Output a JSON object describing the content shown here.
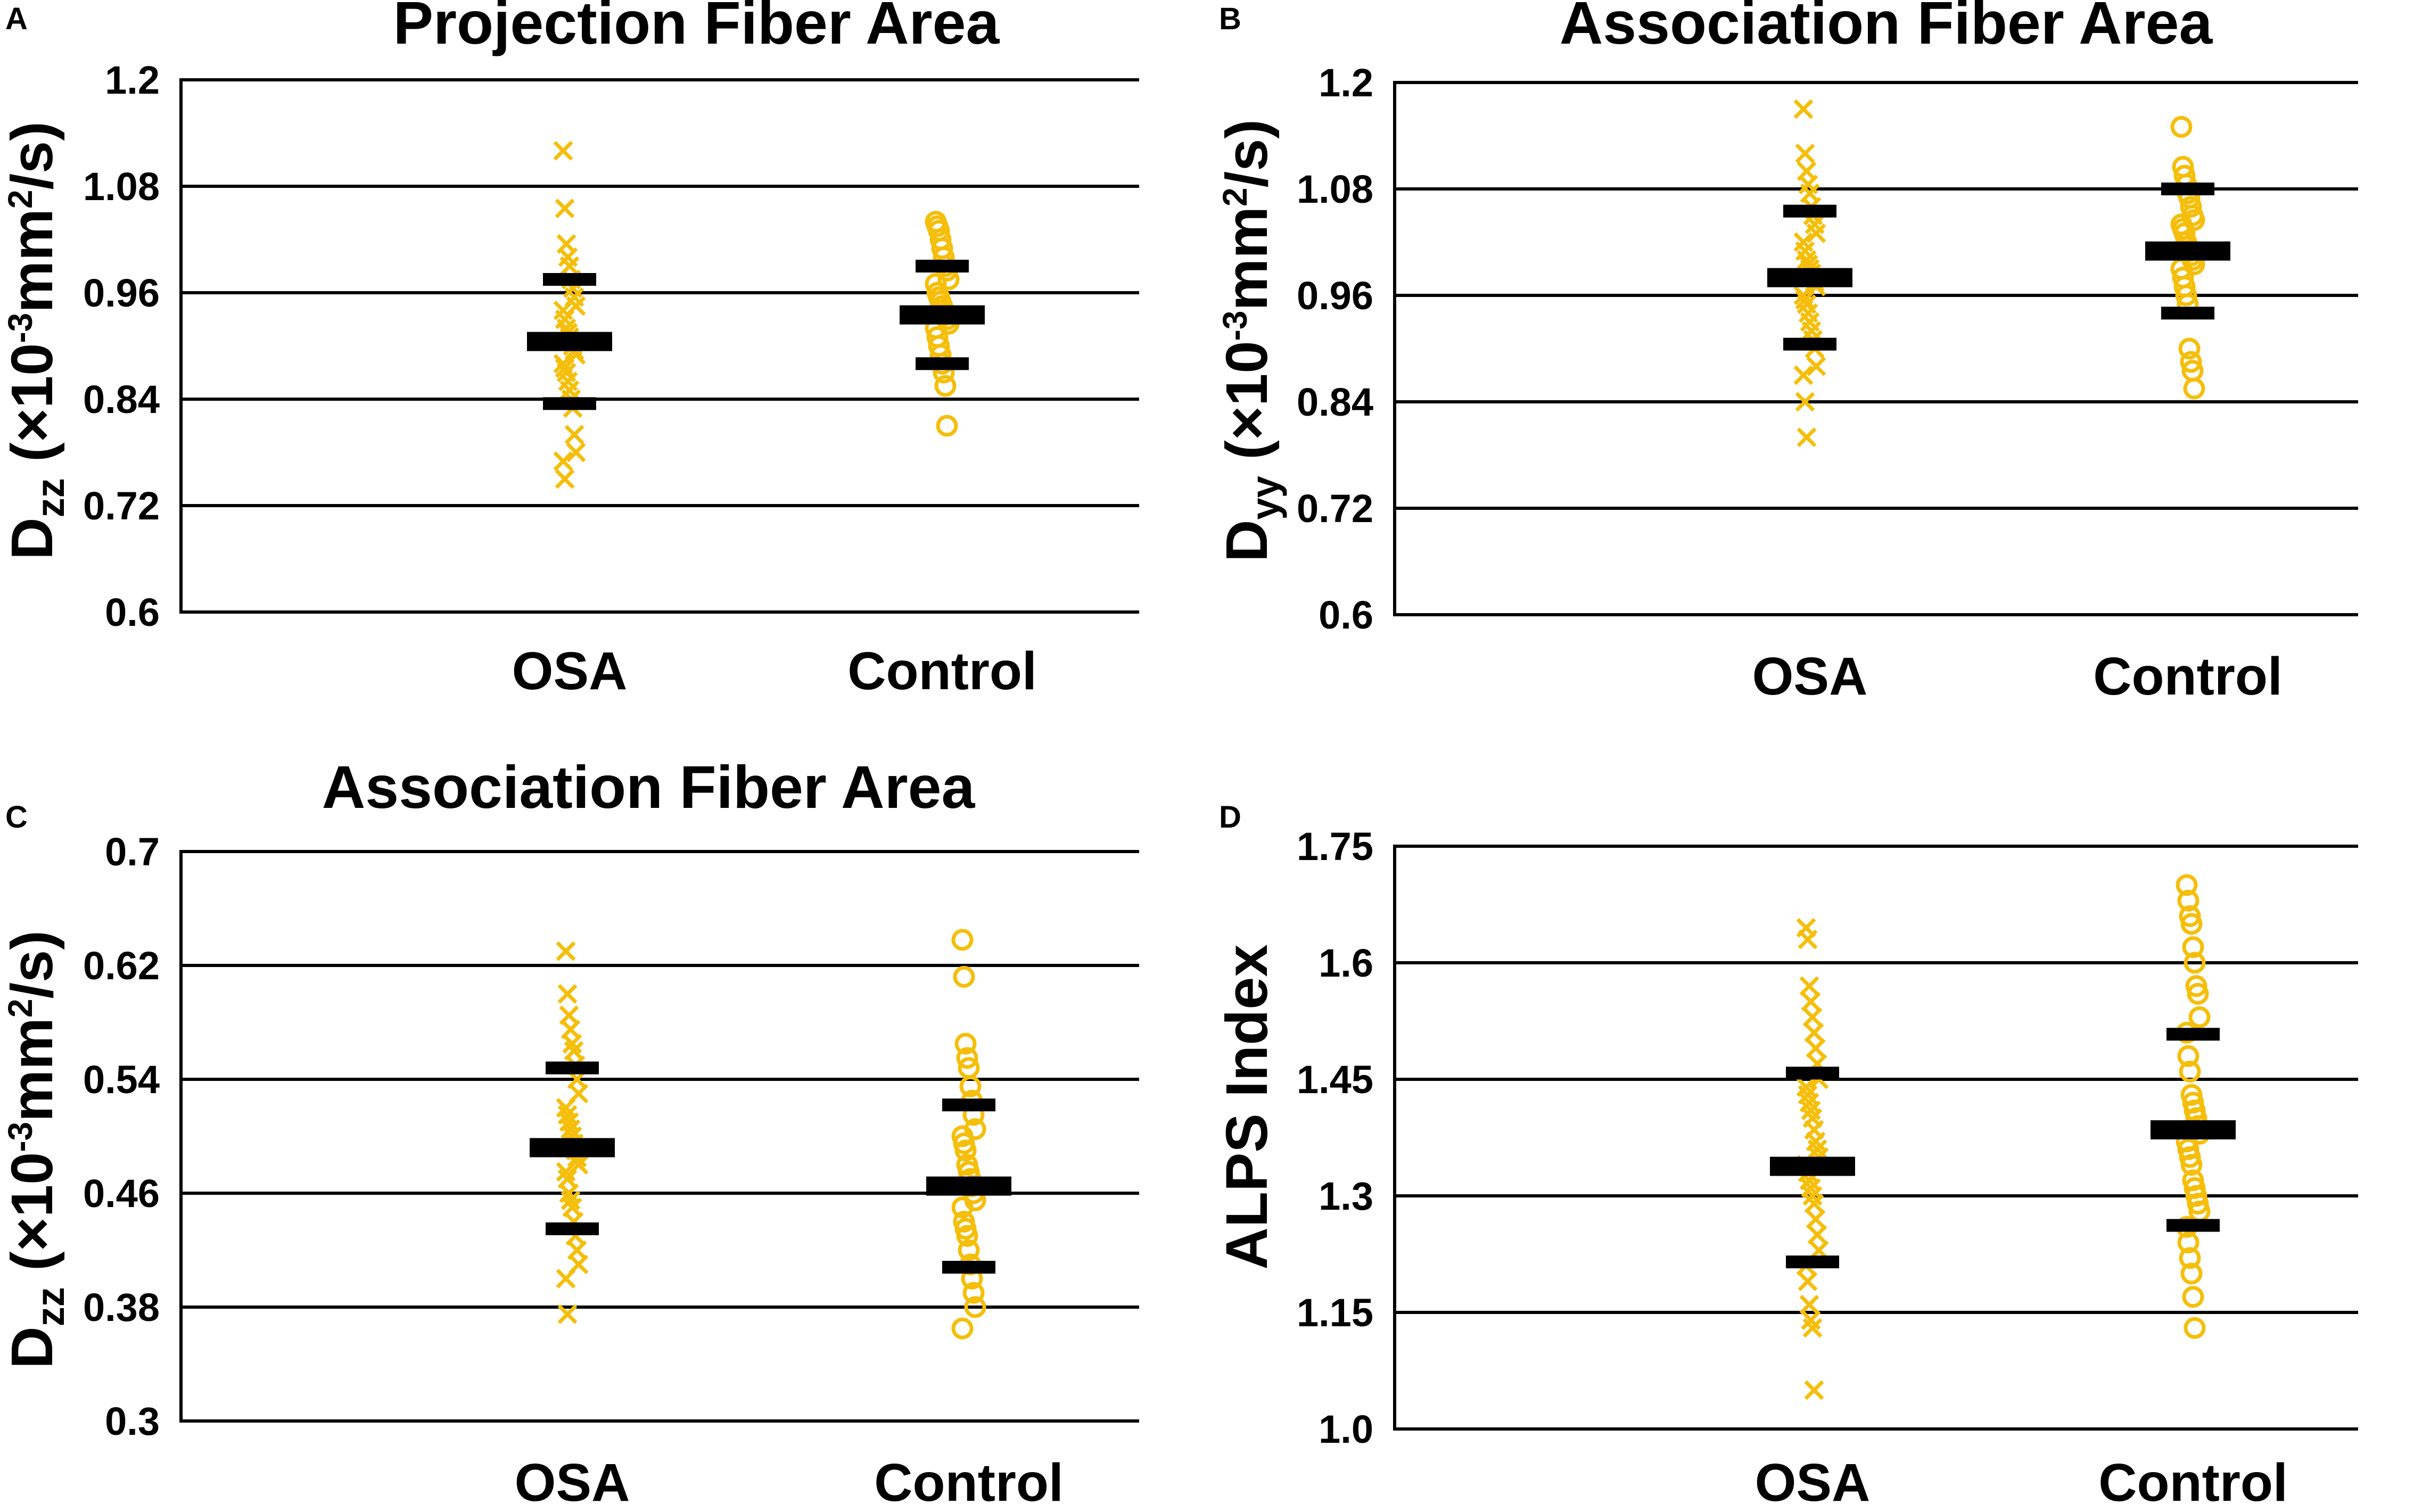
{
  "figure": {
    "background": "#ffffff",
    "marker_color": "#F5BE0A",
    "bar_color": "#000000"
  },
  "chart_data": [
    {
      "panel": "A",
      "type": "scatter",
      "title": "Projection Fiber Area",
      "ylabel": {
        "main": "D",
        "sub": "zz",
        "open": " (×10",
        "sup": "-3",
        "mid": "mm",
        "sup2": "2",
        "close": "/s)"
      },
      "ylim": [
        0.6,
        1.2
      ],
      "ytick_labels": [
        "0.6",
        "0.72",
        "0.84",
        "0.96",
        "1.08",
        "1.2"
      ],
      "categories": [
        "OSA",
        "Control"
      ],
      "series": [
        {
          "name": "OSA",
          "marker": "x",
          "mean": 0.905,
          "sd_low": 0.835,
          "sd_high": 0.975,
          "points": [
            1.12,
            1.055,
            1.015,
            1.0,
            0.99,
            0.975,
            0.965,
            0.955,
            0.945,
            0.94,
            0.93,
            0.92,
            0.915,
            0.91,
            0.905,
            0.9,
            0.895,
            0.89,
            0.88,
            0.875,
            0.87,
            0.86,
            0.85,
            0.84,
            0.83,
            0.8,
            0.78,
            0.77,
            0.75
          ]
        },
        {
          "name": "Control",
          "marker": "o",
          "mean": 0.935,
          "sd_low": 0.88,
          "sd_high": 0.99,
          "points": [
            1.04,
            1.035,
            1.03,
            1.02,
            1.01,
            1.0,
            0.99,
            0.985,
            0.975,
            0.97,
            0.96,
            0.955,
            0.95,
            0.945,
            0.94,
            0.935,
            0.93,
            0.925,
            0.92,
            0.91,
            0.9,
            0.89,
            0.88,
            0.87,
            0.855,
            0.81
          ]
        }
      ]
    },
    {
      "panel": "B",
      "type": "scatter",
      "title": "Association Fiber Area",
      "ylabel": {
        "main": "D",
        "sub": "yy",
        "open": " (×10",
        "sup": "-3",
        "mid": "mm",
        "sup2": "2",
        "close": "/s)"
      },
      "ylim": [
        0.6,
        1.2
      ],
      "ytick_labels": [
        "0.6",
        "0.72",
        "0.84",
        "0.96",
        "1.08",
        "1.2"
      ],
      "categories": [
        "OSA",
        "Control"
      ],
      "series": [
        {
          "name": "OSA",
          "marker": "x",
          "mean": 0.98,
          "sd_low": 0.905,
          "sd_high": 1.055,
          "points": [
            1.17,
            1.12,
            1.1,
            1.085,
            1.075,
            1.06,
            1.05,
            1.04,
            1.03,
            1.02,
            1.01,
            1.0,
            0.995,
            0.99,
            0.985,
            0.98,
            0.975,
            0.97,
            0.96,
            0.955,
            0.95,
            0.94,
            0.93,
            0.92,
            0.91,
            0.9,
            0.88,
            0.87,
            0.84,
            0.8
          ]
        },
        {
          "name": "Control",
          "marker": "o",
          "mean": 1.01,
          "sd_low": 0.94,
          "sd_high": 1.08,
          "points": [
            1.15,
            1.105,
            1.095,
            1.085,
            1.075,
            1.07,
            1.06,
            1.05,
            1.045,
            1.04,
            1.035,
            1.03,
            1.02,
            1.015,
            1.01,
            1.005,
            1.0,
            0.995,
            0.99,
            0.98,
            0.97,
            0.96,
            0.95,
            0.9,
            0.885,
            0.875,
            0.855
          ]
        }
      ]
    },
    {
      "panel": "C",
      "type": "scatter",
      "title": "Association Fiber Area",
      "ylabel": {
        "main": "D",
        "sub": "zz",
        "open": " (×10",
        "sup": "-3",
        "mid": "mm",
        "sup2": "2",
        "close": "/s)"
      },
      "ylim": [
        0.3,
        0.7
      ],
      "ytick_labels": [
        "0.3",
        "0.38",
        "0.46",
        "0.54",
        "0.62",
        "0.7"
      ],
      "categories": [
        "OSA",
        "Control"
      ],
      "series": [
        {
          "name": "OSA",
          "marker": "x",
          "mean": 0.492,
          "sd_low": 0.435,
          "sd_high": 0.548,
          "points": [
            0.63,
            0.6,
            0.585,
            0.575,
            0.565,
            0.56,
            0.55,
            0.54,
            0.53,
            0.52,
            0.515,
            0.51,
            0.505,
            0.5,
            0.495,
            0.49,
            0.485,
            0.48,
            0.475,
            0.47,
            0.46,
            0.455,
            0.45,
            0.44,
            0.43,
            0.42,
            0.41,
            0.4,
            0.375
          ]
        },
        {
          "name": "Control",
          "marker": "o",
          "mean": 0.465,
          "sd_low": 0.408,
          "sd_high": 0.522,
          "points": [
            0.638,
            0.612,
            0.565,
            0.555,
            0.548,
            0.535,
            0.525,
            0.515,
            0.505,
            0.5,
            0.495,
            0.49,
            0.48,
            0.475,
            0.47,
            0.465,
            0.46,
            0.455,
            0.45,
            0.44,
            0.435,
            0.43,
            0.42,
            0.41,
            0.4,
            0.39,
            0.38,
            0.365
          ]
        }
      ]
    },
    {
      "panel": "D",
      "type": "scatter",
      "title": "",
      "ylabel": {
        "main": "ALPS Index",
        "sub": "",
        "open": "",
        "sup": "",
        "mid": "",
        "sup2": "",
        "close": ""
      },
      "ylim": [
        1.0,
        1.75
      ],
      "ytick_labels": [
        "1.0",
        "1.15",
        "1.3",
        "1.45",
        "1.6",
        "1.75"
      ],
      "categories": [
        "OSA",
        "Control"
      ],
      "series": [
        {
          "name": "OSA",
          "marker": "x",
          "mean": 1.338,
          "sd_low": 1.215,
          "sd_high": 1.458,
          "points": [
            1.645,
            1.63,
            1.57,
            1.55,
            1.53,
            1.51,
            1.49,
            1.47,
            1.45,
            1.44,
            1.43,
            1.42,
            1.41,
            1.4,
            1.385,
            1.37,
            1.36,
            1.35,
            1.34,
            1.33,
            1.32,
            1.31,
            1.3,
            1.29,
            1.27,
            1.25,
            1.23,
            1.21,
            1.19,
            1.16,
            1.14,
            1.13,
            1.05
          ]
        },
        {
          "name": "Control",
          "marker": "o",
          "mean": 1.385,
          "sd_low": 1.262,
          "sd_high": 1.508,
          "points": [
            1.7,
            1.68,
            1.66,
            1.65,
            1.62,
            1.6,
            1.57,
            1.56,
            1.53,
            1.51,
            1.48,
            1.46,
            1.43,
            1.42,
            1.41,
            1.4,
            1.39,
            1.38,
            1.37,
            1.36,
            1.35,
            1.34,
            1.32,
            1.31,
            1.3,
            1.29,
            1.28,
            1.26,
            1.24,
            1.22,
            1.2,
            1.17,
            1.13
          ]
        }
      ]
    }
  ]
}
